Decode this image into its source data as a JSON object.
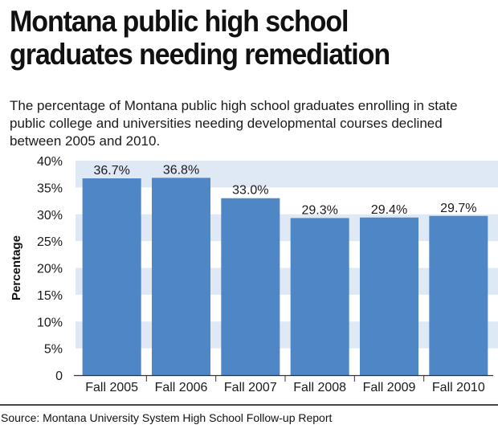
{
  "header": {
    "title_line1": "Montana public high school",
    "title_line2": "graduates needing remediation",
    "subtitle": "The percentage of Montana public high school graduates enrolling in state public college and universities needing developmental courses declined between 2005 and 2010."
  },
  "footer": {
    "source": "Source: Montana University System High School Follow-up Report"
  },
  "colors": {
    "bar": "#4f86c6",
    "band": "#dfe8f5",
    "text": "#1a1a1a"
  },
  "chart_data": {
    "type": "bar",
    "categories": [
      "Fall 2005",
      "Fall 2006",
      "Fall 2007",
      "Fall 2008",
      "Fall 2009",
      "Fall 2010"
    ],
    "values": [
      36.7,
      36.8,
      33.0,
      29.3,
      29.4,
      29.7
    ],
    "value_labels": [
      "36.7%",
      "36.8%",
      "33.0%",
      "29.3%",
      "29.4%",
      "29.7%"
    ],
    "title": "Montana public high school graduates needing remediation",
    "xlabel": "",
    "ylabel": "Percentage",
    "ylim": [
      0,
      40
    ],
    "yticks": [
      0,
      5,
      10,
      15,
      20,
      25,
      30,
      35,
      40
    ],
    "ytick_labels": [
      "0",
      "5%",
      "10%",
      "15%",
      "20%",
      "25%",
      "30%",
      "35%",
      "40%"
    ],
    "grid": "alternating horizontal bands",
    "legend": "none"
  }
}
